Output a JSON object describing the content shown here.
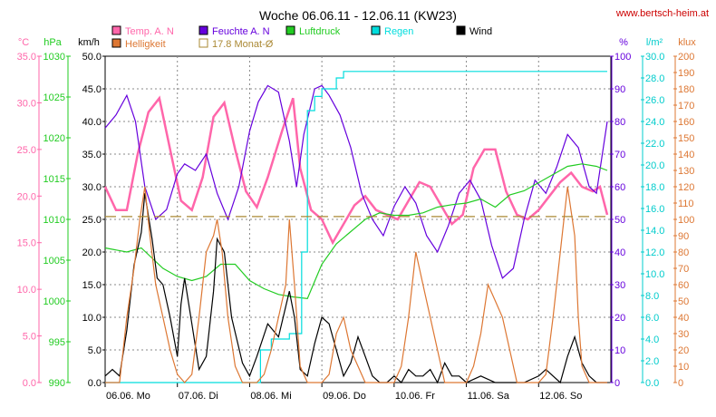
{
  "chart_data": {
    "type": "line",
    "title": "Woche 06.06.11 - 12.06.11 (KW23)",
    "source": "www.bertsch-heim.at",
    "x_labels": [
      "06.06. Mo",
      "07.06. Di",
      "08.06. Mi",
      "09.06. Do",
      "10.06. Fr",
      "11.06. Sa",
      "12.06. So"
    ],
    "x_range_days": [
      0,
      7
    ],
    "axes": [
      {
        "id": "temp",
        "unit": "°C",
        "min": 0,
        "max": 35,
        "ticks": [
          "0.0",
          "5.0",
          "10.0",
          "15.0",
          "20.0",
          "25.0",
          "30.0",
          "35.0"
        ],
        "color": "#ff66aa",
        "side": "left"
      },
      {
        "id": "pressure",
        "unit": "hPa",
        "min": 990,
        "max": 1030,
        "ticks": [
          "990",
          "995",
          "1000",
          "1005",
          "1010",
          "1015",
          "1020",
          "1025",
          "1030"
        ],
        "color": "#22cc22",
        "side": "left"
      },
      {
        "id": "wind",
        "unit": "km/h",
        "min": 0,
        "max": 50,
        "ticks": [
          "0.0",
          "5.0",
          "10.0",
          "15.0",
          "20.0",
          "25.0",
          "30.0",
          "35.0",
          "40.0",
          "45.0",
          "50.0"
        ],
        "color": "#000000",
        "side": "left"
      },
      {
        "id": "humidity",
        "unit": "%",
        "min": 0,
        "max": 100,
        "ticks": [
          "0",
          "10",
          "20",
          "30",
          "40",
          "50",
          "60",
          "70",
          "80",
          "90",
          "100"
        ],
        "color": "#6600dd",
        "side": "right"
      },
      {
        "id": "rain",
        "unit": "l/m²",
        "min": 0,
        "max": 30,
        "ticks": [
          "0.0",
          "2.0",
          "4.0",
          "6.0",
          "8.0",
          "10.0",
          "12.0",
          "14.0",
          "16.0",
          "18.0",
          "20.0",
          "22.0",
          "24.0",
          "26.0",
          "28.0",
          "30.0"
        ],
        "color": "#00cccc",
        "side": "right"
      },
      {
        "id": "brightness",
        "unit": "klux",
        "min": 0,
        "max": 200,
        "ticks": [
          "0",
          "10",
          "20",
          "30",
          "40",
          "50",
          "60",
          "70",
          "80",
          "90",
          "100",
          "110",
          "120",
          "130",
          "140",
          "150",
          "160",
          "170",
          "180",
          "190",
          "200"
        ],
        "color": "#dd7733",
        "side": "right"
      }
    ],
    "legend": [
      {
        "label": "Temp. A. N",
        "color": "#ff66aa"
      },
      {
        "label": "Feuchte A. N",
        "color": "#6600dd"
      },
      {
        "label": "Luftdruck",
        "color": "#22cc22"
      },
      {
        "label": "Regen",
        "color": "#00dddd"
      },
      {
        "label": "Wind",
        "color": "#000000"
      },
      {
        "label": "Helligkeit",
        "color": "#dd7733"
      },
      {
        "label": "17.8 Monat-Ø",
        "color": "#aa8833"
      }
    ],
    "series": [
      {
        "name": "Temp. A. N",
        "axis": "temp",
        "color": "#ff66aa",
        "x": [
          0,
          0.15,
          0.3,
          0.45,
          0.6,
          0.75,
          0.9,
          1.05,
          1.2,
          1.35,
          1.5,
          1.65,
          1.8,
          1.95,
          2.1,
          2.25,
          2.45,
          2.6,
          2.7,
          2.85,
          3.0,
          3.15,
          3.3,
          3.45,
          3.6,
          3.75,
          3.9,
          4.05,
          4.2,
          4.35,
          4.5,
          4.65,
          4.8,
          4.95,
          5.1,
          5.25,
          5.4,
          5.55,
          5.7,
          5.85,
          6.0,
          6.15,
          6.3,
          6.45,
          6.6,
          6.75,
          6.85,
          6.95
        ],
        "values": [
          21,
          18.5,
          18.5,
          24.5,
          29,
          30.5,
          25,
          19.5,
          18.5,
          22,
          28.5,
          30,
          25,
          20.5,
          18.8,
          22,
          27,
          30.5,
          23,
          18.5,
          17.5,
          15,
          17,
          19,
          20,
          18.5,
          18,
          17.5,
          19.5,
          21.5,
          21,
          19,
          17,
          18,
          23,
          25,
          25,
          20.5,
          18,
          17.5,
          18.5,
          20,
          21.5,
          22.5,
          21,
          20.5,
          21,
          18
        ]
      },
      {
        "name": "Feuchte A. N",
        "axis": "humidity",
        "color": "#6600dd",
        "x": [
          0,
          0.15,
          0.3,
          0.42,
          0.55,
          0.7,
          0.85,
          1.0,
          1.1,
          1.25,
          1.4,
          1.55,
          1.7,
          1.85,
          2.0,
          2.12,
          2.25,
          2.4,
          2.55,
          2.65,
          2.75,
          2.9,
          3.0,
          3.1,
          3.25,
          3.4,
          3.55,
          3.7,
          3.85,
          4.0,
          4.15,
          4.3,
          4.45,
          4.6,
          4.75,
          4.9,
          5.05,
          5.2,
          5.35,
          5.5,
          5.65,
          5.8,
          5.95,
          6.1,
          6.25,
          6.4,
          6.55,
          6.7,
          6.8,
          6.95
        ],
        "values": [
          78,
          82,
          88,
          80,
          60,
          50,
          53,
          64,
          67,
          65,
          70,
          58,
          50,
          60,
          77,
          86,
          91,
          89,
          74,
          60,
          76,
          90,
          91,
          88,
          82,
          72,
          58,
          50,
          45,
          54,
          60,
          55,
          45,
          40,
          48,
          58,
          62,
          56,
          42,
          32,
          35,
          50,
          62,
          58,
          66,
          76,
          72,
          60,
          58,
          80
        ]
      },
      {
        "name": "Luftdruck",
        "axis": "pressure",
        "color": "#22cc22",
        "x": [
          0,
          0.3,
          0.5,
          0.8,
          1.0,
          1.2,
          1.4,
          1.6,
          1.8,
          2.0,
          2.2,
          2.4,
          2.6,
          2.8,
          3.0,
          3.2,
          3.4,
          3.6,
          3.8,
          4.0,
          4.2,
          4.4,
          4.6,
          4.8,
          5.0,
          5.2,
          5.4,
          5.6,
          5.8,
          6.0,
          6.2,
          6.4,
          6.6,
          6.8,
          6.95
        ],
        "values": [
          1006.5,
          1006,
          1006.5,
          1004,
          1003,
          1002.5,
          1003,
          1004.5,
          1004.5,
          1002.5,
          1001.5,
          1000.8,
          1000.5,
          1000.3,
          1004.5,
          1007,
          1008.5,
          1010,
          1010.8,
          1010.5,
          1010.5,
          1010.8,
          1011.5,
          1011.8,
          1012,
          1012.5,
          1011.5,
          1013,
          1013.5,
          1014.5,
          1015.5,
          1016.5,
          1016.8,
          1016.5,
          1016
        ]
      },
      {
        "name": "Regen",
        "axis": "rain",
        "color": "#00dddd",
        "x": [
          0,
          2.1,
          2.15,
          2.3,
          2.45,
          2.55,
          2.65,
          2.72,
          2.8,
          2.9,
          3.0,
          3.1,
          3.2,
          3.3,
          3.5,
          5.5,
          6.95
        ],
        "values": [
          0,
          0,
          3,
          4,
          4,
          4.5,
          4.5,
          12,
          25,
          26.3,
          27,
          27,
          28,
          28.6,
          28.6,
          28.6,
          28.6
        ]
      },
      {
        "name": "Wind",
        "axis": "wind",
        "color": "#000000",
        "x": [
          0,
          0.1,
          0.2,
          0.3,
          0.4,
          0.5,
          0.55,
          0.65,
          0.72,
          0.8,
          0.9,
          1.0,
          1.05,
          1.1,
          1.2,
          1.3,
          1.4,
          1.5,
          1.55,
          1.65,
          1.75,
          1.9,
          2.0,
          2.1,
          2.25,
          2.4,
          2.55,
          2.62,
          2.7,
          2.8,
          2.9,
          3.0,
          3.1,
          3.2,
          3.3,
          3.4,
          3.5,
          3.6,
          3.7,
          3.8,
          3.9,
          4.0,
          4.1,
          4.2,
          4.3,
          4.4,
          4.5,
          4.6,
          4.7,
          4.8,
          4.9,
          5.0,
          5.2,
          5.4,
          5.6,
          5.8,
          6.0,
          6.1,
          6.2,
          6.3,
          6.4,
          6.5,
          6.6,
          6.7,
          6.8,
          6.95
        ],
        "values": [
          1,
          2,
          1,
          8,
          18,
          23,
          29,
          22,
          16,
          15,
          10,
          4,
          12,
          16,
          9,
          2,
          4,
          14,
          22,
          20,
          10,
          3,
          1,
          4,
          9,
          7,
          14,
          10,
          2,
          1,
          6,
          10,
          9,
          5,
          1,
          3,
          7,
          4,
          1,
          0,
          0,
          1,
          0,
          2,
          1,
          1,
          2,
          0,
          3,
          1,
          1,
          0,
          1,
          0,
          0,
          0,
          1,
          2,
          1,
          0,
          4,
          7,
          3,
          1,
          0,
          0
        ]
      },
      {
        "name": "Helligkeit",
        "axis": "brightness",
        "color": "#dd7733",
        "x": [
          0,
          0.2,
          0.3,
          0.4,
          0.48,
          0.55,
          0.62,
          0.7,
          0.8,
          0.9,
          1.0,
          1.1,
          1.2,
          1.3,
          1.4,
          1.5,
          1.55,
          1.62,
          1.7,
          1.8,
          1.9,
          2.0,
          2.1,
          2.2,
          2.3,
          2.4,
          2.5,
          2.55,
          2.62,
          2.7,
          2.8,
          2.9,
          3.0,
          3.1,
          3.2,
          3.3,
          3.4,
          3.5,
          3.6,
          3.7,
          3.8,
          3.9,
          4.0,
          4.1,
          4.2,
          4.3,
          4.4,
          4.5,
          4.6,
          4.7,
          4.8,
          4.9,
          5.0,
          5.1,
          5.2,
          5.3,
          5.4,
          5.5,
          5.6,
          5.7,
          5.8,
          5.9,
          6.0,
          6.1,
          6.2,
          6.3,
          6.4,
          6.5,
          6.55,
          6.6,
          6.7,
          6.8,
          6.95
        ],
        "values": [
          0,
          0,
          40,
          70,
          100,
          120,
          90,
          60,
          40,
          20,
          5,
          0,
          5,
          40,
          80,
          90,
          100,
          80,
          40,
          10,
          0,
          0,
          0,
          5,
          20,
          40,
          60,
          100,
          60,
          10,
          0,
          0,
          0,
          5,
          30,
          40,
          20,
          10,
          0,
          0,
          0,
          0,
          0,
          10,
          40,
          80,
          60,
          40,
          20,
          0,
          0,
          0,
          0,
          10,
          30,
          60,
          50,
          40,
          20,
          0,
          0,
          0,
          0,
          5,
          40,
          80,
          120,
          90,
          40,
          10,
          0,
          0,
          0
        ]
      },
      {
        "name": "17.8 Monat-Ø",
        "axis": "temp",
        "color": "#aa8833",
        "dashed": true,
        "x": [
          0,
          7
        ],
        "values": [
          17.8,
          17.8
        ]
      }
    ],
    "grid": true
  }
}
